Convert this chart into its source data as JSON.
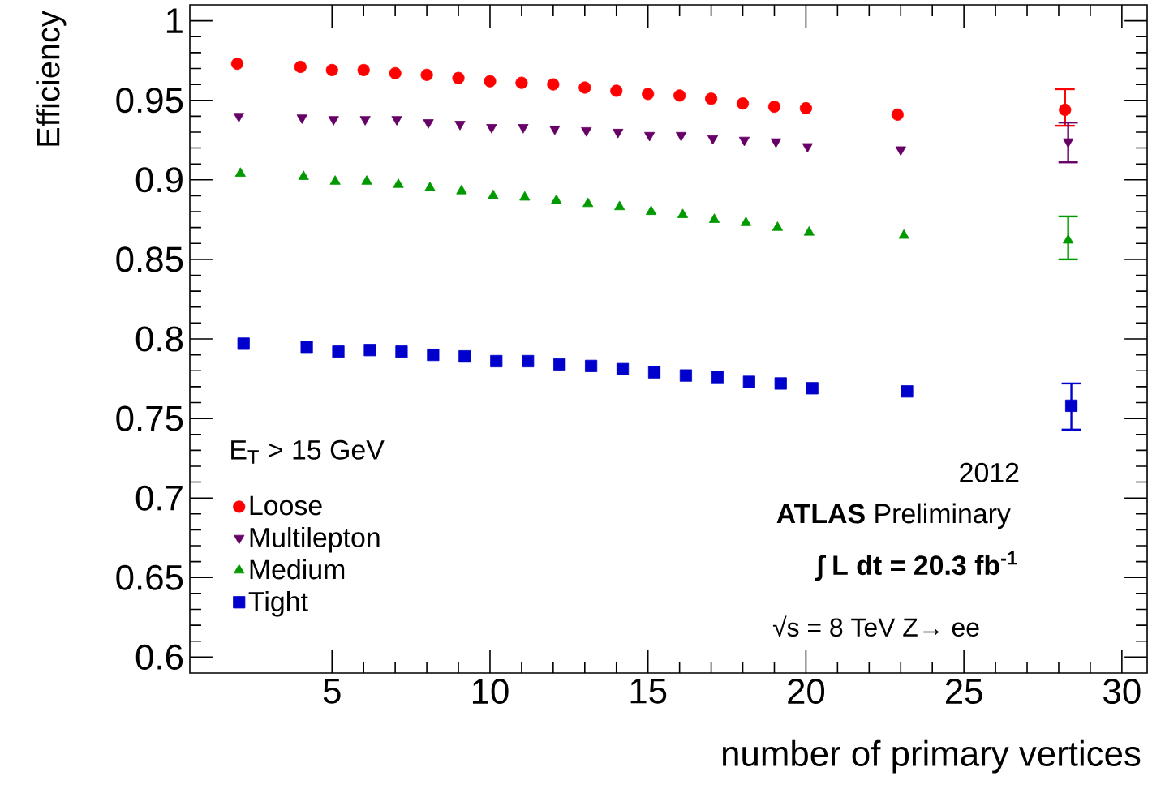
{
  "chart_data": {
    "type": "scatter",
    "xlabel": "number of primary vertices",
    "ylabel": "Efficiency",
    "legend_title": "E$_{T}$ > 15 GeV",
    "xlim": [
      0.5,
      30.8
    ],
    "xticks": [
      5,
      10,
      15,
      20,
      25,
      30
    ],
    "ylim": [
      0.59,
      1.01
    ],
    "yticks": [
      0.6,
      0.65,
      0.7,
      0.75,
      0.8,
      0.85,
      0.9,
      0.95,
      1
    ],
    "grid": false,
    "legend": "bottom left",
    "annotations": [
      "2012",
      "**ATLAS** Preliminary",
      "∫ L dt = 20.3 fb$^{-1}$",
      "√s = 8 TeV Z→ ee"
    ],
    "series": [
      {
        "name": "Loose",
        "color": "#ff0000",
        "marker": "circle",
        "x": [
          2,
          4,
          5,
          6,
          7,
          8,
          9,
          10,
          11,
          12,
          13,
          14,
          15,
          16,
          17,
          18,
          19,
          20,
          22.9,
          28.2
        ],
        "values": [
          0.973,
          0.971,
          0.969,
          0.969,
          0.967,
          0.966,
          0.964,
          0.962,
          0.961,
          0.96,
          0.958,
          0.956,
          0.954,
          0.953,
          0.951,
          0.948,
          0.946,
          0.945,
          0.941,
          0.944
        ],
        "errors": [
          null,
          null,
          null,
          null,
          null,
          null,
          null,
          null,
          null,
          null,
          null,
          null,
          null,
          null,
          null,
          null,
          null,
          null,
          null,
          [
            0.934,
            0.957
          ]
        ]
      },
      {
        "name": "Multilepton",
        "color": "#660066",
        "marker": "triangle down",
        "x": [
          2.05,
          4.05,
          5.05,
          6.05,
          7.05,
          8.05,
          9.05,
          10.05,
          11.05,
          12.05,
          13.05,
          14.05,
          15.05,
          16.05,
          17.05,
          18.05,
          19.05,
          20.05,
          23,
          28.3
        ],
        "values": [
          0.94,
          0.939,
          0.938,
          0.938,
          0.938,
          0.936,
          0.935,
          0.933,
          0.933,
          0.932,
          0.931,
          0.93,
          0.928,
          0.928,
          0.926,
          0.925,
          0.924,
          0.921,
          0.919,
          0.924
        ],
        "errors": [
          null,
          null,
          null,
          null,
          null,
          null,
          null,
          null,
          null,
          null,
          null,
          null,
          null,
          null,
          null,
          null,
          null,
          null,
          null,
          [
            0.911,
            0.936
          ]
        ]
      },
      {
        "name": "Medium",
        "color": "#009900",
        "marker": "triangle",
        "x": [
          2.1,
          4.1,
          5.1,
          6.1,
          7.1,
          8.1,
          9.1,
          10.1,
          11.1,
          12.1,
          13.1,
          14.1,
          15.1,
          16.1,
          17.1,
          18.1,
          19.1,
          20.1,
          23.1,
          28.3
        ],
        "values": [
          0.904,
          0.902,
          0.899,
          0.899,
          0.897,
          0.895,
          0.893,
          0.89,
          0.889,
          0.887,
          0.885,
          0.883,
          0.88,
          0.878,
          0.875,
          0.873,
          0.87,
          0.867,
          0.865,
          0.862
        ],
        "errors": [
          null,
          null,
          null,
          null,
          null,
          null,
          null,
          null,
          null,
          null,
          null,
          null,
          null,
          null,
          null,
          null,
          null,
          null,
          null,
          [
            0.85,
            0.877
          ]
        ]
      },
      {
        "name": "Tight",
        "color": "#0000cc",
        "marker": "square",
        "x": [
          2.2,
          4.2,
          5.2,
          6.2,
          7.2,
          8.2,
          9.2,
          10.2,
          11.2,
          12.2,
          13.2,
          14.2,
          15.2,
          16.2,
          17.2,
          18.2,
          19.2,
          20.2,
          23.2,
          28.4
        ],
        "values": [
          0.797,
          0.795,
          0.792,
          0.793,
          0.792,
          0.79,
          0.789,
          0.786,
          0.786,
          0.784,
          0.783,
          0.781,
          0.779,
          0.777,
          0.776,
          0.773,
          0.772,
          0.769,
          0.767,
          0.758
        ],
        "errors": [
          null,
          null,
          null,
          null,
          null,
          null,
          null,
          null,
          null,
          null,
          null,
          null,
          null,
          null,
          null,
          null,
          null,
          null,
          null,
          [
            0.743,
            0.772
          ]
        ]
      }
    ]
  }
}
